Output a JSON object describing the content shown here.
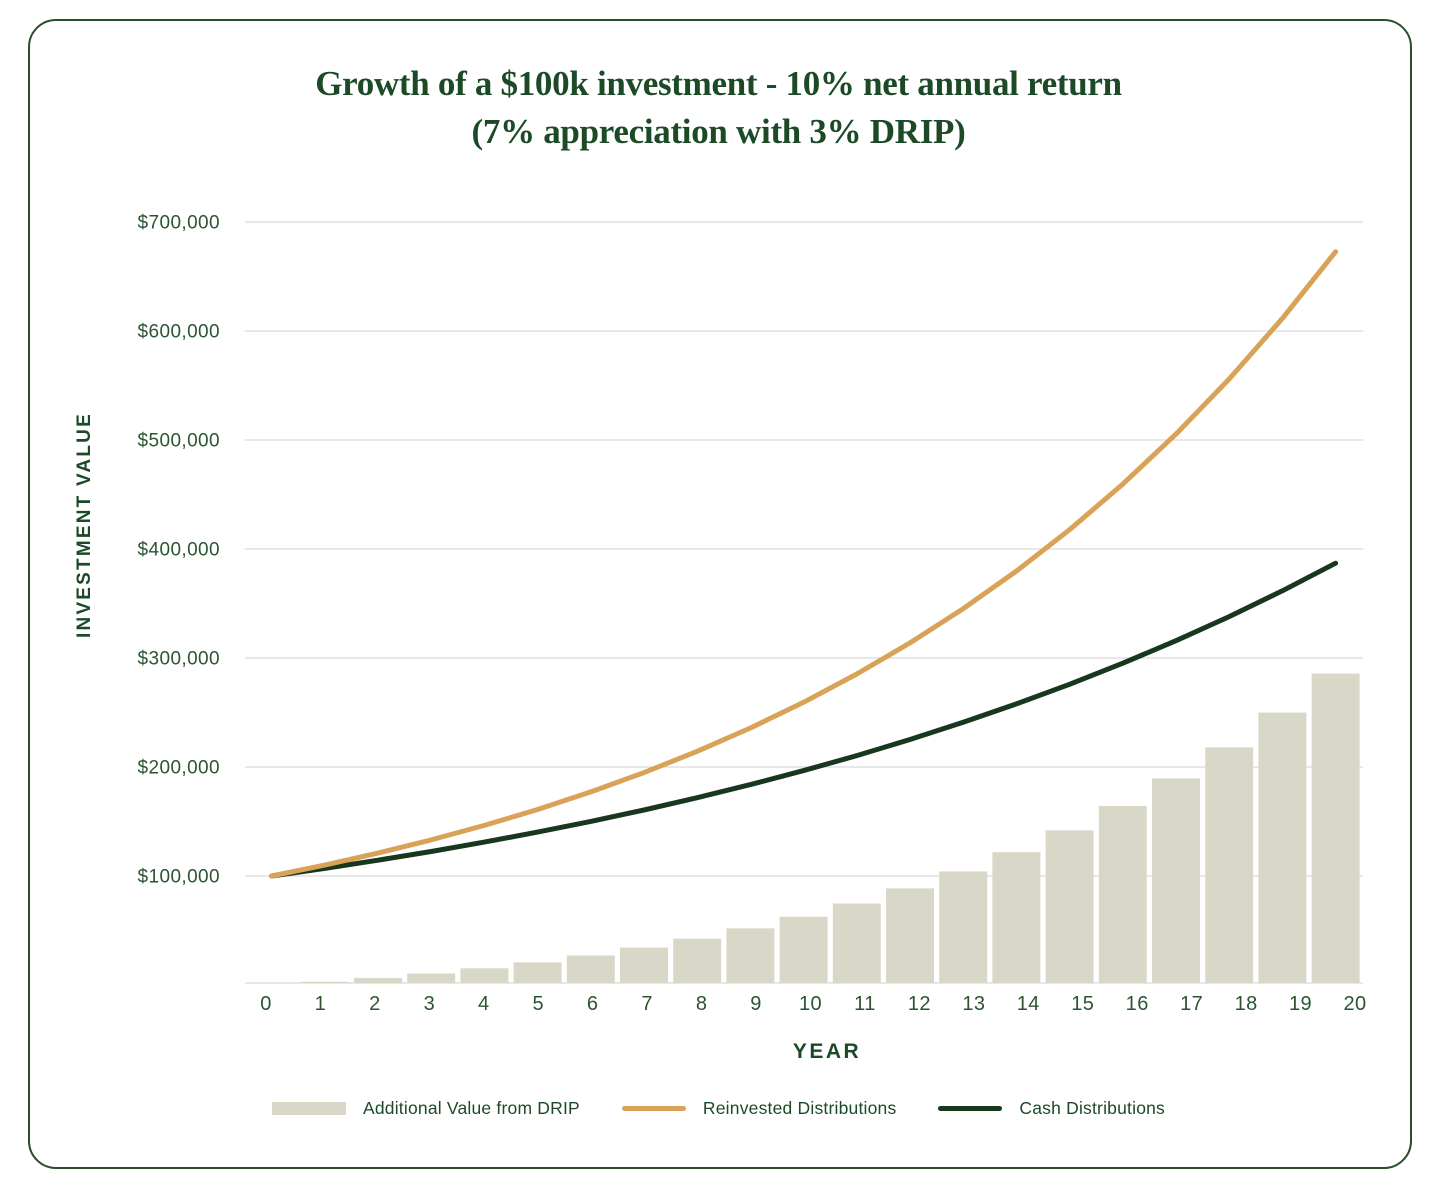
{
  "title": {
    "line1": "Growth of a $100k investment - 10% net annual return",
    "line2": "(7% appreciation with 3% DRIP)"
  },
  "colors": {
    "title_green": "#1D4A26",
    "tick_green": "#2B5531",
    "card_border": "#2B4E2E",
    "gridline": "#D9D9D9",
    "bar_fill": "#D9D8C8",
    "gold_line": "#D8A357",
    "dark_green_line": "#18381E"
  },
  "chart_data": {
    "type": "line",
    "title": "Growth of a $100k investment - 10% net annual return (7% appreciation with 3% DRIP)",
    "xlabel": "YEAR",
    "ylabel": "INVESTMENT VALUE",
    "ylim": [
      0,
      700000
    ],
    "grid": "horizontal",
    "legend_position": "bottom",
    "x": [
      0,
      1,
      2,
      3,
      4,
      5,
      6,
      7,
      8,
      9,
      10,
      11,
      12,
      13,
      14,
      15,
      16,
      17,
      18,
      19,
      20
    ],
    "x_ticks": [
      "0",
      "1",
      "2",
      "3",
      "4",
      "5",
      "6",
      "7",
      "8",
      "9",
      "10",
      "11",
      "12",
      "13",
      "14",
      "15",
      "16",
      "17",
      "18",
      "19",
      "20"
    ],
    "y_ticks": [
      100000,
      200000,
      300000,
      400000,
      500000,
      600000,
      700000
    ],
    "y_tick_labels": [
      "$100,000",
      "$200,000",
      "$300,000",
      "$400,000",
      "$500,000",
      "$600,000",
      "$700,000"
    ],
    "series": [
      {
        "name": "Additional Value from DRIP",
        "type": "bar",
        "color": "#D9D8C8",
        "values": [
          0,
          3000,
          6510,
          10596,
          15330,
          20796,
          27083,
          34294,
          42540,
          51949,
          62659,
          74827,
          88624,
          104242,
          121897,
          141822,
          164281,
          189565,
          217999,
          249938,
          285782
        ]
      },
      {
        "name": "Reinvested Distributions",
        "type": "line",
        "color": "#D8A357",
        "values": [
          100000,
          110000,
          121000,
          133100,
          146410,
          161051,
          177156,
          194872,
          214359,
          235795,
          259374,
          285312,
          313843,
          345227,
          379750,
          417725,
          459497,
          505447,
          555992,
          611591,
          672750
        ]
      },
      {
        "name": "Cash Distributions",
        "type": "line",
        "color": "#18381E",
        "values": [
          100000,
          107000,
          114490,
          122504,
          131080,
          140255,
          150073,
          160578,
          171819,
          183846,
          196715,
          210485,
          225219,
          240985,
          257853,
          275903,
          295216,
          315882,
          337993,
          361653,
          386968
        ]
      }
    ]
  }
}
